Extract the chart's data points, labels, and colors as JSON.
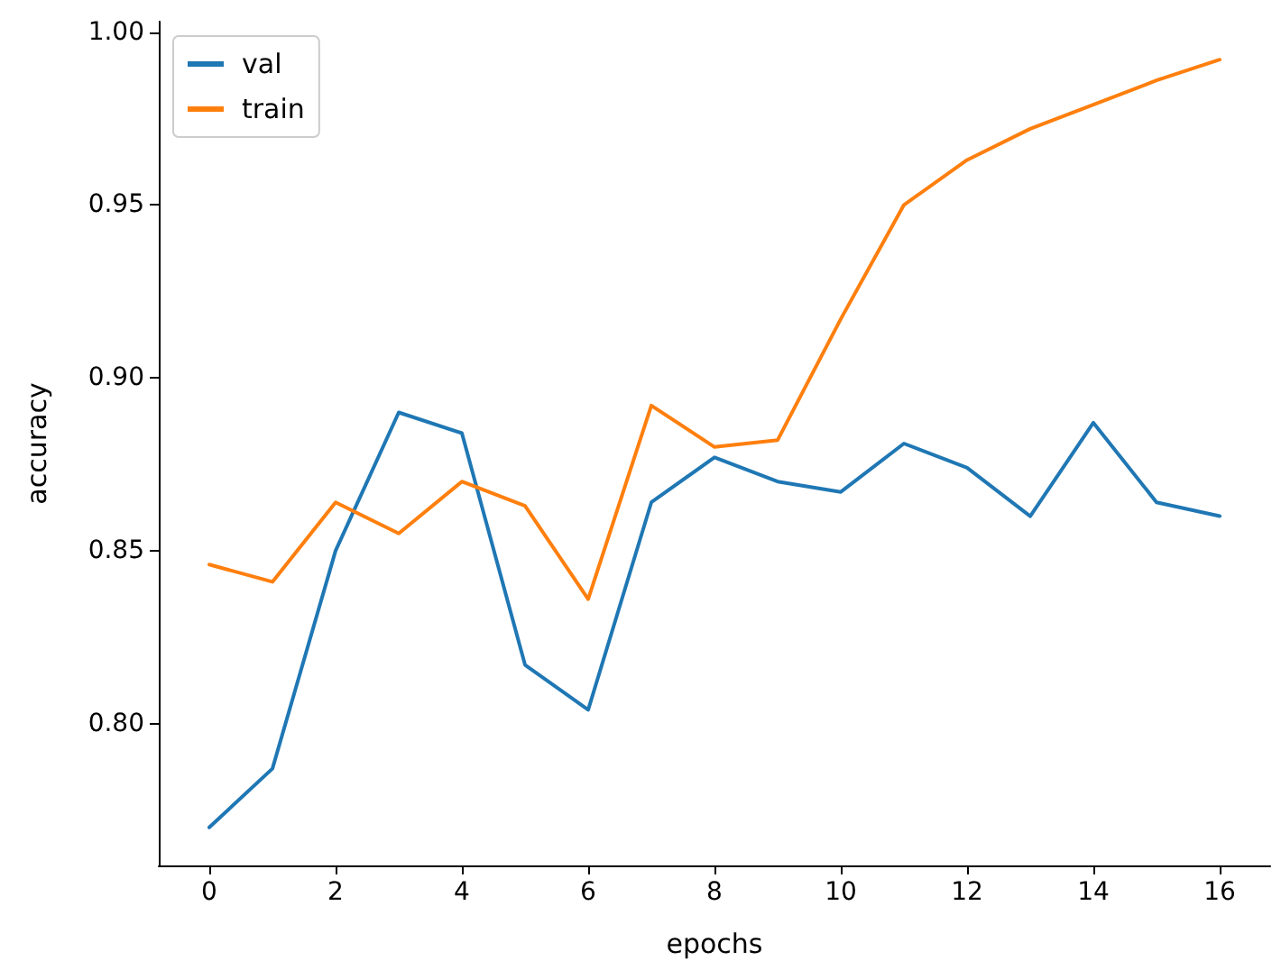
{
  "chart_data": {
    "type": "line",
    "xlabel": "epochs",
    "ylabel": "accuracy",
    "x": [
      0,
      1,
      2,
      3,
      4,
      5,
      6,
      7,
      8,
      9,
      10,
      11,
      12,
      13,
      14,
      15,
      16
    ],
    "series": [
      {
        "name": "val",
        "color": "#1f77b4",
        "values": [
          0.77,
          0.787,
          0.85,
          0.89,
          0.884,
          0.817,
          0.804,
          0.864,
          0.877,
          0.87,
          0.867,
          0.881,
          0.874,
          0.86,
          0.887,
          0.864,
          0.86
        ]
      },
      {
        "name": "train",
        "color": "#ff7f0e",
        "values": [
          0.846,
          0.841,
          0.864,
          0.855,
          0.87,
          0.863,
          0.836,
          0.892,
          0.88,
          0.882,
          0.917,
          0.95,
          0.963,
          0.972,
          0.979,
          0.986,
          0.992
        ]
      }
    ],
    "xlim": [
      -0.8,
      16.8
    ],
    "xticks": [
      0,
      2,
      4,
      6,
      8,
      10,
      12,
      14,
      16
    ],
    "ylim": [
      0.759,
      1.003
    ],
    "yticks": [
      {
        "value": 0.8,
        "label": "0.80"
      },
      {
        "value": 0.85,
        "label": "0.85"
      },
      {
        "value": 0.9,
        "label": "0.90"
      },
      {
        "value": 0.95,
        "label": "0.95"
      },
      {
        "value": 1.0,
        "label": "1.00"
      }
    ],
    "legend": "top left",
    "grid": false,
    "marker": "none",
    "line_style": "solid"
  }
}
